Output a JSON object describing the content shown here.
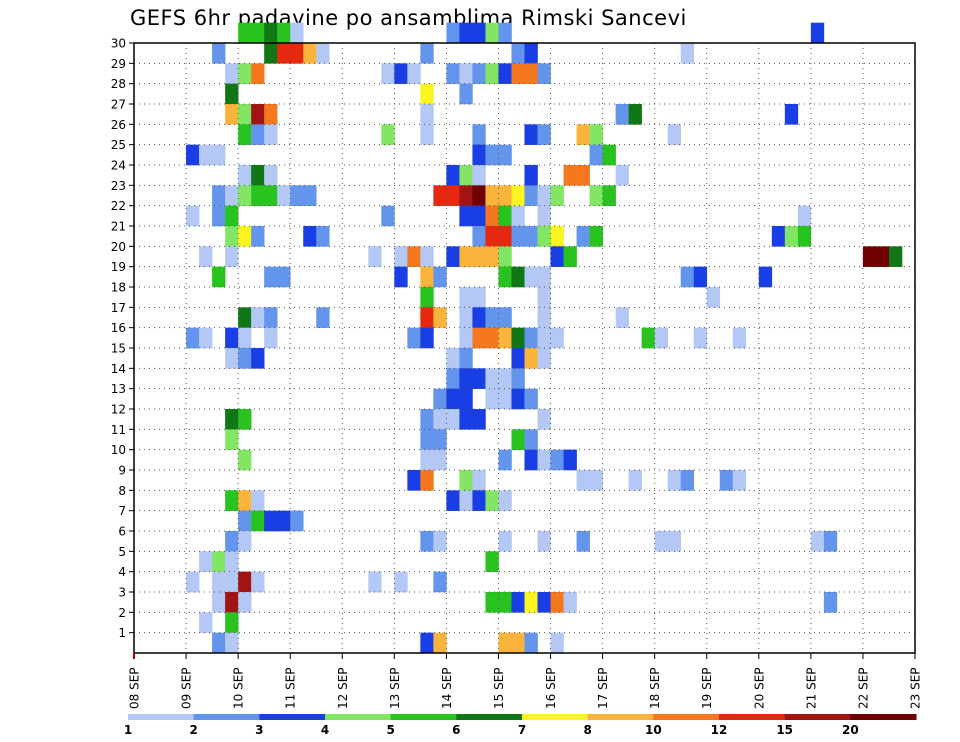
{
  "chart_data": {
    "type": "heatmap",
    "title": "GEFS 6hr padavine po ansamblima Rimski Sancevi",
    "xlabel": "",
    "ylabel": "",
    "x_tick_labels": [
      "08 SEP",
      "09 SEP",
      "10 SEP",
      "11 SEP",
      "12 SEP",
      "13 SEP",
      "14 SEP",
      "15 SEP",
      "16 SEP",
      "17 SEP",
      "18 SEP",
      "19 SEP",
      "20 SEP",
      "21 SEP",
      "22 SEP",
      "23 SEP"
    ],
    "y_tick_labels": [
      "1",
      "2",
      "3",
      "4",
      "5",
      "6",
      "7",
      "8",
      "9",
      "10",
      "11",
      "12",
      "13",
      "14",
      "15",
      "16",
      "17",
      "18",
      "19",
      "20",
      "21",
      "22",
      "23",
      "24",
      "25",
      "26",
      "27",
      "28",
      "29",
      "30"
    ],
    "x_unit": "6-hour steps from 08 SEP 00UTC",
    "grid": true,
    "legend": {
      "position": "bottom",
      "levels": [
        "1",
        "2",
        "3",
        "4",
        "5",
        "6",
        "7",
        "8",
        "10",
        "12",
        "15",
        "20"
      ],
      "colors": [
        "#b4c8f5",
        "#6495ed",
        "#1a3ee6",
        "#82e664",
        "#28c31e",
        "#0f7814",
        "#faf51e",
        "#fab43c",
        "#f5781e",
        "#e6280f",
        "#a01414",
        "#6e0000"
      ]
    },
    "cells": [
      [
        30,
        8,
        4
      ],
      [
        30,
        9,
        4
      ],
      [
        30,
        10,
        5
      ],
      [
        30,
        11,
        4
      ],
      [
        30,
        12,
        0
      ],
      [
        30,
        24,
        1
      ],
      [
        30,
        25,
        2
      ],
      [
        30,
        26,
        2
      ],
      [
        30,
        27,
        3
      ],
      [
        30,
        28,
        1
      ],
      [
        30,
        52,
        2
      ],
      [
        29,
        6,
        1
      ],
      [
        29,
        10,
        5
      ],
      [
        29,
        11,
        9
      ],
      [
        29,
        12,
        9
      ],
      [
        29,
        13,
        7
      ],
      [
        29,
        14,
        0
      ],
      [
        29,
        22,
        1
      ],
      [
        29,
        29,
        1
      ],
      [
        29,
        30,
        2
      ],
      [
        29,
        42,
        0
      ],
      [
        28,
        7,
        0
      ],
      [
        28,
        8,
        3
      ],
      [
        28,
        9,
        8
      ],
      [
        28,
        19,
        0
      ],
      [
        28,
        20,
        2
      ],
      [
        28,
        21,
        0
      ],
      [
        28,
        24,
        1
      ],
      [
        28,
        25,
        0
      ],
      [
        28,
        26,
        1
      ],
      [
        28,
        27,
        3
      ],
      [
        28,
        28,
        2
      ],
      [
        28,
        29,
        8
      ],
      [
        28,
        30,
        8
      ],
      [
        28,
        31,
        1
      ],
      [
        27,
        7,
        5
      ],
      [
        27,
        22,
        6
      ],
      [
        27,
        25,
        1
      ],
      [
        26,
        7,
        7
      ],
      [
        26,
        8,
        3
      ],
      [
        26,
        9,
        10
      ],
      [
        26,
        10,
        8
      ],
      [
        26,
        22,
        0
      ],
      [
        26,
        37,
        1
      ],
      [
        26,
        38,
        5
      ],
      [
        26,
        50,
        2
      ],
      [
        25,
        8,
        4
      ],
      [
        25,
        9,
        1
      ],
      [
        25,
        10,
        0
      ],
      [
        25,
        19,
        3
      ],
      [
        25,
        22,
        0
      ],
      [
        25,
        26,
        1
      ],
      [
        25,
        30,
        2
      ],
      [
        25,
        31,
        1
      ],
      [
        25,
        34,
        7
      ],
      [
        25,
        35,
        3
      ],
      [
        25,
        41,
        0
      ],
      [
        24,
        4,
        2
      ],
      [
        24,
        5,
        0
      ],
      [
        24,
        6,
        0
      ],
      [
        24,
        26,
        2
      ],
      [
        24,
        27,
        1
      ],
      [
        24,
        28,
        1
      ],
      [
        24,
        35,
        1
      ],
      [
        24,
        36,
        4
      ],
      [
        23,
        8,
        0
      ],
      [
        23,
        9,
        5
      ],
      [
        23,
        10,
        0
      ],
      [
        23,
        24,
        2
      ],
      [
        23,
        25,
        3
      ],
      [
        23,
        26,
        0
      ],
      [
        23,
        30,
        2
      ],
      [
        23,
        33,
        8
      ],
      [
        23,
        34,
        8
      ],
      [
        23,
        37,
        0
      ],
      [
        22,
        6,
        1
      ],
      [
        22,
        7,
        0
      ],
      [
        22,
        8,
        3
      ],
      [
        22,
        9,
        4
      ],
      [
        22,
        10,
        4
      ],
      [
        22,
        11,
        0
      ],
      [
        22,
        12,
        1
      ],
      [
        22,
        13,
        1
      ],
      [
        22,
        23,
        9
      ],
      [
        22,
        24,
        9
      ],
      [
        22,
        25,
        10
      ],
      [
        22,
        26,
        11
      ],
      [
        22,
        27,
        7
      ],
      [
        22,
        28,
        7
      ],
      [
        22,
        29,
        6
      ],
      [
        22,
        30,
        1
      ],
      [
        22,
        31,
        0
      ],
      [
        22,
        32,
        3
      ],
      [
        22,
        35,
        3
      ],
      [
        22,
        36,
        4
      ],
      [
        21,
        4,
        0
      ],
      [
        21,
        6,
        1
      ],
      [
        21,
        7,
        4
      ],
      [
        21,
        19,
        1
      ],
      [
        21,
        25,
        2
      ],
      [
        21,
        26,
        2
      ],
      [
        21,
        27,
        8
      ],
      [
        21,
        28,
        4
      ],
      [
        21,
        29,
        0
      ],
      [
        21,
        31,
        0
      ],
      [
        21,
        51,
        0
      ],
      [
        20,
        7,
        3
      ],
      [
        20,
        8,
        6
      ],
      [
        20,
        9,
        1
      ],
      [
        20,
        13,
        2
      ],
      [
        20,
        14,
        1
      ],
      [
        20,
        26,
        1
      ],
      [
        20,
        27,
        9
      ],
      [
        20,
        28,
        9
      ],
      [
        20,
        29,
        1
      ],
      [
        20,
        30,
        1
      ],
      [
        20,
        31,
        3
      ],
      [
        20,
        32,
        6
      ],
      [
        20,
        34,
        1
      ],
      [
        20,
        35,
        4
      ],
      [
        20,
        49,
        2
      ],
      [
        20,
        50,
        3
      ],
      [
        20,
        51,
        4
      ],
      [
        19,
        5,
        0
      ],
      [
        19,
        7,
        0
      ],
      [
        19,
        18,
        0
      ],
      [
        19,
        20,
        0
      ],
      [
        19,
        21,
        8
      ],
      [
        19,
        22,
        0
      ],
      [
        19,
        24,
        2
      ],
      [
        19,
        25,
        7
      ],
      [
        19,
        26,
        7
      ],
      [
        19,
        27,
        7
      ],
      [
        19,
        28,
        3
      ],
      [
        19,
        32,
        2
      ],
      [
        19,
        33,
        4
      ],
      [
        19,
        56,
        11
      ],
      [
        19,
        57,
        11
      ],
      [
        19,
        58,
        5
      ],
      [
        18,
        6,
        4
      ],
      [
        18,
        10,
        1
      ],
      [
        18,
        11,
        1
      ],
      [
        18,
        20,
        2
      ],
      [
        18,
        22,
        7
      ],
      [
        18,
        23,
        1
      ],
      [
        18,
        28,
        4
      ],
      [
        18,
        29,
        5
      ],
      [
        18,
        30,
        0
      ],
      [
        18,
        31,
        0
      ],
      [
        18,
        42,
        1
      ],
      [
        18,
        43,
        2
      ],
      [
        18,
        48,
        2
      ],
      [
        17,
        22,
        4
      ],
      [
        17,
        25,
        0
      ],
      [
        17,
        26,
        0
      ],
      [
        17,
        31,
        0
      ],
      [
        17,
        44,
        0
      ],
      [
        16,
        8,
        5
      ],
      [
        16,
        9,
        0
      ],
      [
        16,
        10,
        1
      ],
      [
        16,
        14,
        1
      ],
      [
        16,
        22,
        9
      ],
      [
        16,
        23,
        7
      ],
      [
        16,
        25,
        0
      ],
      [
        16,
        26,
        2
      ],
      [
        16,
        27,
        1
      ],
      [
        16,
        28,
        1
      ],
      [
        16,
        31,
        0
      ],
      [
        16,
        37,
        0
      ],
      [
        15,
        4,
        1
      ],
      [
        15,
        5,
        0
      ],
      [
        15,
        7,
        2
      ],
      [
        15,
        8,
        0
      ],
      [
        15,
        10,
        0
      ],
      [
        15,
        21,
        1
      ],
      [
        15,
        22,
        2
      ],
      [
        15,
        25,
        0
      ],
      [
        15,
        26,
        8
      ],
      [
        15,
        27,
        8
      ],
      [
        15,
        28,
        7
      ],
      [
        15,
        29,
        5
      ],
      [
        15,
        30,
        1
      ],
      [
        15,
        31,
        0
      ],
      [
        15,
        32,
        0
      ],
      [
        15,
        39,
        4
      ],
      [
        15,
        40,
        0
      ],
      [
        15,
        43,
        0
      ],
      [
        15,
        46,
        0
      ],
      [
        14,
        7,
        0
      ],
      [
        14,
        8,
        1
      ],
      [
        14,
        9,
        2
      ],
      [
        14,
        24,
        0
      ],
      [
        14,
        25,
        1
      ],
      [
        14,
        29,
        2
      ],
      [
        14,
        30,
        7
      ],
      [
        14,
        31,
        0
      ],
      [
        13,
        24,
        1
      ],
      [
        13,
        25,
        2
      ],
      [
        13,
        26,
        2
      ],
      [
        13,
        27,
        0
      ],
      [
        13,
        28,
        0
      ],
      [
        13,
        29,
        1
      ],
      [
        12,
        23,
        1
      ],
      [
        12,
        24,
        2
      ],
      [
        12,
        25,
        2
      ],
      [
        12,
        27,
        0
      ],
      [
        12,
        28,
        0
      ],
      [
        12,
        29,
        2
      ],
      [
        12,
        30,
        1
      ],
      [
        11,
        7,
        5
      ],
      [
        11,
        8,
        4
      ],
      [
        11,
        22,
        1
      ],
      [
        11,
        23,
        0
      ],
      [
        11,
        24,
        0
      ],
      [
        11,
        25,
        2
      ],
      [
        11,
        26,
        2
      ],
      [
        11,
        31,
        0
      ],
      [
        10,
        7,
        3
      ],
      [
        10,
        22,
        1
      ],
      [
        10,
        23,
        1
      ],
      [
        10,
        29,
        4
      ],
      [
        10,
        30,
        1
      ],
      [
        9,
        8,
        3
      ],
      [
        9,
        22,
        0
      ],
      [
        9,
        23,
        0
      ],
      [
        9,
        28,
        1
      ],
      [
        9,
        30,
        2
      ],
      [
        9,
        31,
        0
      ],
      [
        9,
        32,
        1
      ],
      [
        9,
        33,
        2
      ],
      [
        8,
        21,
        2
      ],
      [
        8,
        22,
        8
      ],
      [
        8,
        25,
        3
      ],
      [
        8,
        26,
        0
      ],
      [
        8,
        34,
        0
      ],
      [
        8,
        35,
        0
      ],
      [
        8,
        38,
        0
      ],
      [
        8,
        41,
        0
      ],
      [
        8,
        42,
        1
      ],
      [
        8,
        45,
        1
      ],
      [
        8,
        46,
        0
      ],
      [
        7,
        7,
        4
      ],
      [
        7,
        8,
        7
      ],
      [
        7,
        9,
        0
      ],
      [
        7,
        24,
        2
      ],
      [
        7,
        25,
        0
      ],
      [
        7,
        26,
        2
      ],
      [
        7,
        27,
        3
      ],
      [
        7,
        28,
        0
      ],
      [
        6,
        8,
        1
      ],
      [
        6,
        9,
        4
      ],
      [
        6,
        10,
        2
      ],
      [
        6,
        11,
        2
      ],
      [
        6,
        12,
        1
      ],
      [
        5,
        7,
        1
      ],
      [
        5,
        8,
        0
      ],
      [
        5,
        22,
        1
      ],
      [
        5,
        23,
        0
      ],
      [
        5,
        28,
        0
      ],
      [
        5,
        31,
        0
      ],
      [
        5,
        34,
        1
      ],
      [
        5,
        40,
        0
      ],
      [
        5,
        41,
        0
      ],
      [
        5,
        52,
        0
      ],
      [
        5,
        53,
        1
      ],
      [
        4,
        5,
        0
      ],
      [
        4,
        6,
        3
      ],
      [
        4,
        7,
        0
      ],
      [
        4,
        27,
        4
      ],
      [
        3,
        4,
        0
      ],
      [
        3,
        6,
        0
      ],
      [
        3,
        7,
        0
      ],
      [
        3,
        8,
        10
      ],
      [
        3,
        9,
        0
      ],
      [
        3,
        18,
        0
      ],
      [
        3,
        20,
        0
      ],
      [
        3,
        23,
        1
      ],
      [
        2,
        6,
        0
      ],
      [
        2,
        7,
        10
      ],
      [
        2,
        8,
        0
      ],
      [
        2,
        27,
        4
      ],
      [
        2,
        28,
        4
      ],
      [
        2,
        29,
        2
      ],
      [
        2,
        30,
        6
      ],
      [
        2,
        31,
        2
      ],
      [
        2,
        32,
        8
      ],
      [
        2,
        33,
        0
      ],
      [
        2,
        53,
        1
      ],
      [
        1,
        5,
        0
      ],
      [
        1,
        7,
        4
      ],
      [
        0,
        6,
        1
      ],
      [
        0,
        7,
        0
      ],
      [
        0,
        22,
        2
      ],
      [
        0,
        23,
        7
      ],
      [
        0,
        28,
        7
      ],
      [
        0,
        29,
        7
      ],
      [
        0,
        30,
        1
      ],
      [
        0,
        32,
        0
      ]
    ]
  }
}
